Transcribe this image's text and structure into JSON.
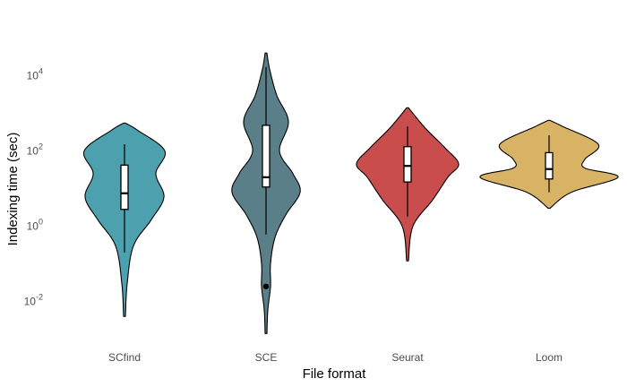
{
  "chart_data": {
    "type": "violin",
    "xlabel": "File format",
    "ylabel": "Indexing time (sec)",
    "y_scale": "log10",
    "ylim": [
      0.0013,
      50000
    ],
    "y_ticks": [
      {
        "value": 0.01,
        "base": "10",
        "exp": "-2"
      },
      {
        "value": 1,
        "base": "10",
        "exp": "0"
      },
      {
        "value": 100,
        "base": "10",
        "exp": "2"
      },
      {
        "value": 10000,
        "base": "10",
        "exp": "4"
      }
    ],
    "grid": false,
    "legend": "none",
    "categories": [
      "SCfind",
      "SCE",
      "Seurat",
      "Loom"
    ],
    "series": [
      {
        "category": "SCfind",
        "color": "#4da0ae",
        "violin_min": 0.004,
        "violin_max": 550,
        "box": {
          "whisker_low": 0.2,
          "q1": 2.8,
          "median": 7.5,
          "q3": 42,
          "whisker_high": 150
        },
        "outliers": [],
        "profile": [
          [
            0.004,
            1
          ],
          [
            0.03,
            3
          ],
          [
            0.3,
            10
          ],
          [
            1.5,
            30
          ],
          [
            6,
            44
          ],
          [
            25,
            35
          ],
          [
            100,
            45
          ],
          [
            350,
            15
          ],
          [
            550,
            1
          ]
        ]
      },
      {
        "category": "SCE",
        "color": "#5b7f89",
        "violin_min": 0.0014,
        "violin_max": 40000,
        "box": {
          "whisker_low": 0.6,
          "q1": 11,
          "median": 20,
          "q3": 480,
          "whisker_high": 17000
        },
        "outliers": [
          0.025
        ],
        "profile": [
          [
            0.0014,
            1
          ],
          [
            0.006,
            2
          ],
          [
            0.025,
            5
          ],
          [
            0.1,
            5
          ],
          [
            0.5,
            10
          ],
          [
            2,
            22
          ],
          [
            8,
            38
          ],
          [
            25,
            30
          ],
          [
            100,
            15
          ],
          [
            600,
            25
          ],
          [
            3000,
            12
          ],
          [
            15000,
            4
          ],
          [
            40000,
            1
          ]
        ]
      },
      {
        "category": "Seurat",
        "color": "#c84d4c",
        "violin_min": 0.12,
        "violin_max": 1400,
        "box": {
          "whisker_low": 1.8,
          "q1": 15,
          "median": 40,
          "q3": 130,
          "whisker_high": 450
        },
        "outliers": [],
        "profile": [
          [
            0.12,
            1
          ],
          [
            1,
            6
          ],
          [
            5,
            28
          ],
          [
            20,
            45
          ],
          [
            45,
            57
          ],
          [
            120,
            42
          ],
          [
            400,
            20
          ],
          [
            1400,
            1
          ]
        ]
      },
      {
        "category": "Loom",
        "color": "#d9b365",
        "violin_min": 3,
        "violin_max": 650,
        "box": {
          "whisker_low": 8,
          "q1": 18,
          "median": 33,
          "q3": 90,
          "whisker_high": 260
        },
        "outliers": [],
        "profile": [
          [
            3,
            1
          ],
          [
            8,
            25
          ],
          [
            20,
            77
          ],
          [
            35,
            40
          ],
          [
            60,
            40
          ],
          [
            150,
            55
          ],
          [
            450,
            15
          ],
          [
            650,
            1
          ]
        ]
      }
    ]
  }
}
